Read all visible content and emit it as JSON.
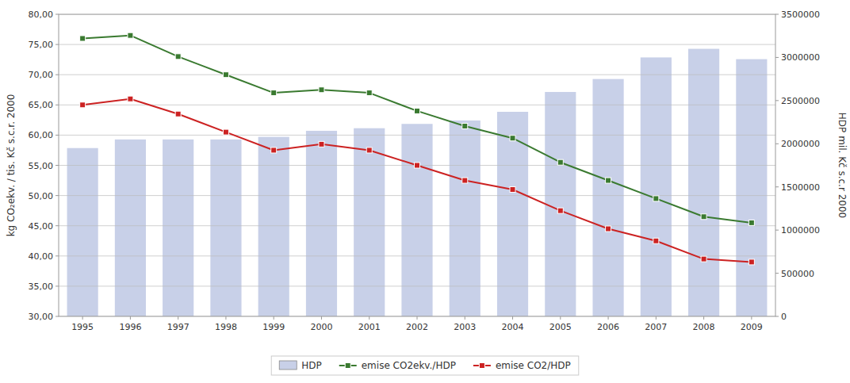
{
  "chart_data": {
    "type": "bar",
    "categories": [
      "1995",
      "1996",
      "1997",
      "1998",
      "1999",
      "2000",
      "2001",
      "2002",
      "2003",
      "2004",
      "2005",
      "2006",
      "2007",
      "2008",
      "2009"
    ],
    "series": [
      {
        "name": "HDP",
        "type": "bar",
        "axis": "y2",
        "color": "#c8d0e8",
        "values": [
          1950000,
          2050000,
          2050000,
          2050000,
          2080000,
          2150000,
          2180000,
          2230000,
          2270000,
          2370000,
          2600000,
          2750000,
          3000000,
          3100000,
          2980000
        ]
      },
      {
        "name": "emise CO2ekv./HDP",
        "type": "line",
        "color": "#3a7a30",
        "marker": "square",
        "values": [
          76.0,
          76.5,
          73.0,
          70.0,
          67.0,
          67.5,
          67.0,
          64.0,
          61.5,
          59.5,
          55.5,
          52.5,
          49.5,
          46.5,
          45.5
        ]
      },
      {
        "name": "emise CO2/HDP",
        "type": "line",
        "color": "#cc2222",
        "marker": "square",
        "values": [
          65.0,
          66.0,
          63.5,
          60.5,
          57.5,
          58.5,
          57.5,
          55.0,
          52.5,
          51.0,
          47.5,
          44.5,
          42.5,
          39.5,
          39.0
        ]
      }
    ],
    "ylabel": "kg CO₂ekv. / tis. Kč s.c.r. 2000",
    "y2label": "HDP mil. Kč s.c.r 2000",
    "ylim": [
      30,
      80
    ],
    "yticks": [
      {
        "value": 30.0,
        "label": "30,00"
      },
      {
        "value": 35.0,
        "label": "35,00"
      },
      {
        "value": 40.0,
        "label": "40,00"
      },
      {
        "value": 45.0,
        "label": "45,00"
      },
      {
        "value": 50.0,
        "label": "50,00"
      },
      {
        "value": 55.0,
        "label": "55,00"
      },
      {
        "value": 60.0,
        "label": "60,00"
      },
      {
        "value": 65.0,
        "label": "65,00"
      },
      {
        "value": 70.0,
        "label": "70,00"
      },
      {
        "value": 75.0,
        "label": "75,00"
      },
      {
        "value": 80.0,
        "label": "80,00"
      }
    ],
    "y2lim": [
      0,
      3500000
    ],
    "y2ticks": [
      0,
      500000,
      1000000,
      1500000,
      2000000,
      2500000,
      3000000,
      3500000
    ],
    "grid": true,
    "legend": "bottom"
  }
}
